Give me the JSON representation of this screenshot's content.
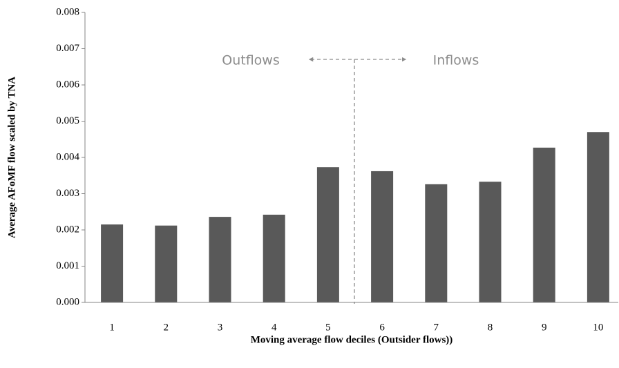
{
  "chart_data": {
    "type": "bar",
    "x_label": "Moving average flow deciles (Outsider flows))",
    "y_label": "Average AFoMF flow scaled by TNA",
    "annotations": [
      "Outflows",
      "Inflows"
    ],
    "categories": [
      "1",
      "2",
      "3",
      "4",
      "5",
      "6",
      "7",
      "8",
      "9",
      "10"
    ],
    "values": [
      0.00215,
      0.00212,
      0.00236,
      0.00242,
      0.00373,
      0.00362,
      0.00326,
      0.00333,
      0.00427,
      0.0047
    ],
    "color": "#595959",
    "ylim": [
      0,
      0.008
    ],
    "yticks": [
      {
        "value": 0,
        "label": "0.000"
      },
      {
        "value": 0.001,
        "label": "0.001"
      },
      {
        "value": 0.002,
        "label": "0.002"
      },
      {
        "value": 0.003,
        "label": "0.003"
      },
      {
        "value": 0.004,
        "label": "0.004"
      },
      {
        "value": 0.005,
        "label": "0.005"
      },
      {
        "value": 0.006,
        "label": "0.006"
      },
      {
        "value": 0.007,
        "label": "0.007"
      },
      {
        "value": 0.008,
        "label": "0.008"
      }
    ],
    "grid": false
  }
}
